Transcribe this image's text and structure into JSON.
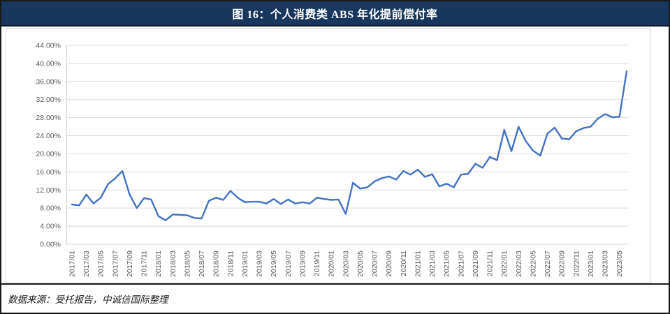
{
  "header": {
    "title": "图 16：个人消费类 ABS 年化提前偿付率"
  },
  "footer": {
    "source": "数据来源：受托报告，中诚信国际整理"
  },
  "colors": {
    "header_bg": "#17375E",
    "header_text": "#FFFFFF",
    "line": "#4472C4",
    "axis_text": "#595959",
    "gridline": "#DCDCDC",
    "axis_line": "#C9C9C9",
    "frame_border": "#1A1A1A",
    "card_border": "#D9D9D9"
  },
  "chart_data": {
    "type": "line",
    "title": "个人消费类 ABS 年化提前偿付率",
    "series_name": "年化提前偿付率",
    "xlabel": "",
    "ylabel": "",
    "ylim": [
      0,
      44
    ],
    "ytick_step": 4,
    "yticks": [
      "0.00%",
      "4.00%",
      "8.00%",
      "12.00%",
      "16.00%",
      "20.00%",
      "24.00%",
      "28.00%",
      "32.00%",
      "36.00%",
      "40.00%",
      "44.00%"
    ],
    "x_tick_every": 2,
    "grid": true,
    "legend_position": "none",
    "x": [
      "2017/01",
      "2017/02",
      "2017/03",
      "2017/04",
      "2017/05",
      "2017/06",
      "2017/07",
      "2017/08",
      "2017/09",
      "2017/10",
      "2017/11",
      "2017/12",
      "2018/01",
      "2018/02",
      "2018/03",
      "2018/04",
      "2018/05",
      "2018/06",
      "2018/07",
      "2018/08",
      "2018/09",
      "2018/10",
      "2018/11",
      "2018/12",
      "2019/01",
      "2019/02",
      "2019/03",
      "2019/04",
      "2019/05",
      "2019/06",
      "2019/07",
      "2019/08",
      "2019/09",
      "2019/10",
      "2019/11",
      "2019/12",
      "2020/01",
      "2020/02",
      "2020/03",
      "2020/04",
      "2020/05",
      "2020/06",
      "2020/07",
      "2020/08",
      "2020/09",
      "2020/10",
      "2020/11",
      "2020/12",
      "2021/01",
      "2021/02",
      "2021/03",
      "2021/04",
      "2021/05",
      "2021/06",
      "2021/07",
      "2021/08",
      "2021/09",
      "2021/10",
      "2021/11",
      "2021/12",
      "2022/01",
      "2022/02",
      "2022/03",
      "2022/04",
      "2022/05",
      "2022/06",
      "2022/07",
      "2022/08",
      "2022/09",
      "2022/10",
      "2022/11",
      "2022/12",
      "2023/01",
      "2023/02",
      "2023/03",
      "2023/04",
      "2023/05",
      "2023/06"
    ],
    "values": [
      8.8,
      8.6,
      11.0,
      9.0,
      10.3,
      13.3,
      14.6,
      16.2,
      11.0,
      8.0,
      10.2,
      9.9,
      6.2,
      5.3,
      6.6,
      6.5,
      6.4,
      5.8,
      5.7,
      9.6,
      10.3,
      9.8,
      11.8,
      10.3,
      9.3,
      9.4,
      9.4,
      9.0,
      10.0,
      8.9,
      9.9,
      9.0,
      9.3,
      9.0,
      10.3,
      10.0,
      9.8,
      9.9,
      6.7,
      13.6,
      12.3,
      12.6,
      13.9,
      14.6,
      15.0,
      14.3,
      16.2,
      15.4,
      16.5,
      14.9,
      15.5,
      12.8,
      13.4,
      12.6,
      15.4,
      15.6,
      17.8,
      16.9,
      19.3,
      18.6,
      25.3,
      20.6,
      26.0,
      22.8,
      20.7,
      19.6,
      24.5,
      25.8,
      23.4,
      23.2,
      25.0,
      25.7,
      26.0,
      27.8,
      28.8,
      28.1,
      28.2,
      38.3
    ]
  }
}
